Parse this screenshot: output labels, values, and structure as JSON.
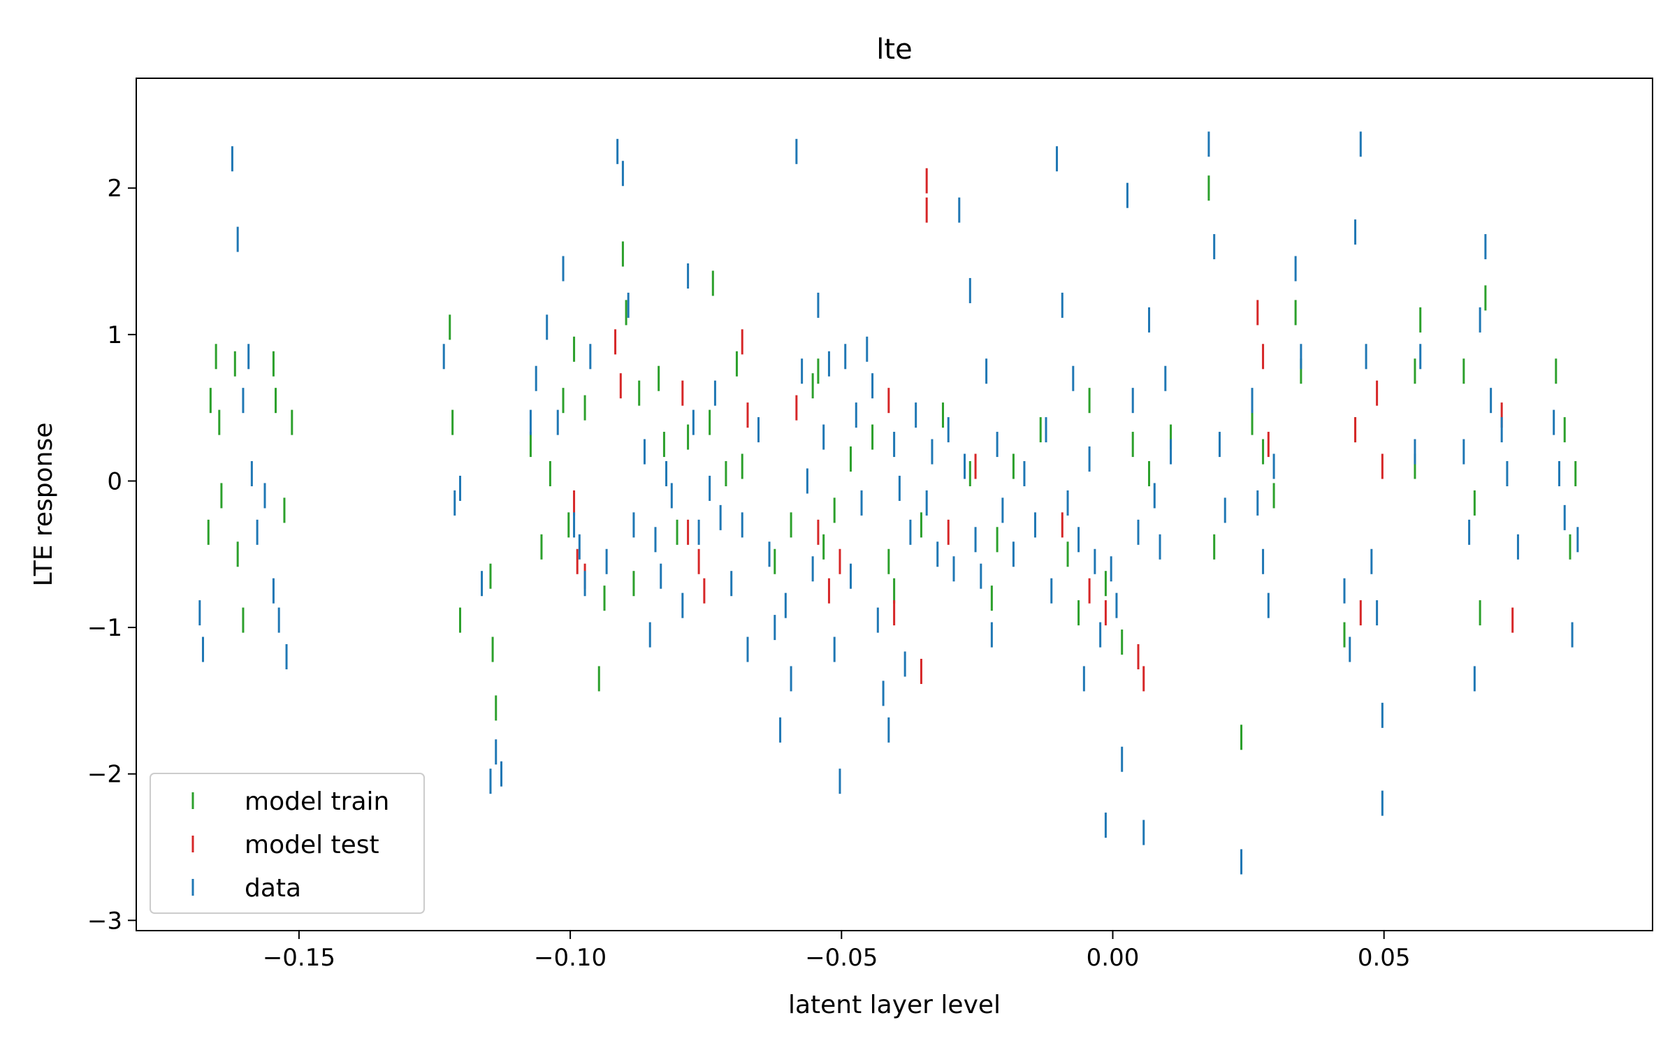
{
  "chart_data": {
    "type": "scatter",
    "title": "lte",
    "xlabel": "latent layer level",
    "ylabel": "LTE response",
    "xlim": [
      -0.18,
      0.0995
    ],
    "ylim": [
      -3.07,
      2.75
    ],
    "xticks": [
      -0.15,
      -0.1,
      -0.05,
      0.0,
      0.05
    ],
    "xtick_labels": [
      "−0.15",
      "−0.10",
      "−0.05",
      "0.00",
      "0.05"
    ],
    "yticks": [
      -3,
      -2,
      -1,
      0,
      1,
      2
    ],
    "ytick_labels": [
      "−3",
      "−2",
      "−1",
      "0",
      "1",
      "2"
    ],
    "grid": false,
    "legend_position": "lower-left",
    "marker": "vertical-line",
    "series": [
      {
        "name": "model train",
        "color": "#2ca02c",
        "points": [
          [
            -0.1667,
            -0.35
          ],
          [
            -0.1663,
            0.55
          ],
          [
            -0.1653,
            0.85
          ],
          [
            -0.1647,
            0.4
          ],
          [
            -0.1643,
            -0.1
          ],
          [
            -0.1618,
            0.8
          ],
          [
            -0.1613,
            -0.5
          ],
          [
            -0.1603,
            -0.95
          ],
          [
            -0.1547,
            0.8
          ],
          [
            -0.1543,
            0.55
          ],
          [
            -0.1527,
            -0.2
          ],
          [
            -0.1513,
            0.4
          ],
          [
            -0.1222,
            1.05
          ],
          [
            -0.1217,
            0.4
          ],
          [
            -0.1203,
            -0.95
          ],
          [
            -0.1147,
            -0.65
          ],
          [
            -0.1143,
            -1.15
          ],
          [
            -0.1137,
            -1.55
          ],
          [
            -0.1073,
            0.25
          ],
          [
            -0.1053,
            -0.45
          ],
          [
            -0.1037,
            0.05
          ],
          [
            -0.1013,
            0.55
          ],
          [
            -0.1003,
            -0.3
          ],
          [
            -0.0993,
            0.9
          ],
          [
            -0.0973,
            0.5
          ],
          [
            -0.0947,
            -1.35
          ],
          [
            -0.0937,
            -0.8
          ],
          [
            -0.0903,
            1.55
          ],
          [
            -0.0897,
            1.15
          ],
          [
            -0.0883,
            -0.7
          ],
          [
            -0.0873,
            0.6
          ],
          [
            -0.0837,
            0.7
          ],
          [
            -0.0827,
            0.25
          ],
          [
            -0.0803,
            -0.35
          ],
          [
            -0.0783,
            0.3
          ],
          [
            -0.0743,
            0.4
          ],
          [
            -0.0737,
            1.35
          ],
          [
            -0.0713,
            0.05
          ],
          [
            -0.0693,
            0.8
          ],
          [
            -0.0683,
            0.1
          ],
          [
            -0.0623,
            -0.55
          ],
          [
            -0.0593,
            -0.3
          ],
          [
            -0.0553,
            0.65
          ],
          [
            -0.0543,
            0.75
          ],
          [
            -0.0533,
            -0.45
          ],
          [
            -0.0513,
            -0.2
          ],
          [
            -0.0483,
            0.15
          ],
          [
            -0.0443,
            0.3
          ],
          [
            -0.0413,
            -0.55
          ],
          [
            -0.0403,
            -0.75
          ],
          [
            -0.0353,
            -0.3
          ],
          [
            -0.0313,
            0.45
          ],
          [
            -0.0263,
            0.05
          ],
          [
            -0.0223,
            -0.8
          ],
          [
            -0.0213,
            -0.4
          ],
          [
            -0.0183,
            0.1
          ],
          [
            -0.0133,
            0.35
          ],
          [
            -0.0083,
            -0.5
          ],
          [
            -0.0063,
            -0.9
          ],
          [
            -0.0043,
            0.55
          ],
          [
            -0.0013,
            -0.7
          ],
          [
            0.0017,
            -1.1
          ],
          [
            0.0037,
            0.25
          ],
          [
            0.0067,
            0.05
          ],
          [
            0.0107,
            0.3
          ],
          [
            0.0177,
            2.0
          ],
          [
            0.0187,
            -0.45
          ],
          [
            0.0237,
            -1.75
          ],
          [
            0.0257,
            0.4
          ],
          [
            0.0277,
            0.2
          ],
          [
            0.0297,
            -0.1
          ],
          [
            0.0337,
            1.15
          ],
          [
            0.0347,
            0.75
          ],
          [
            0.0427,
            -1.05
          ],
          [
            0.0447,
            0.35
          ],
          [
            0.0557,
            0.75
          ],
          [
            0.0567,
            1.1
          ],
          [
            0.0557,
            0.1
          ],
          [
            0.0647,
            0.75
          ],
          [
            0.0667,
            -0.15
          ],
          [
            0.0677,
            -0.9
          ],
          [
            0.0687,
            1.25
          ],
          [
            0.0817,
            0.75
          ],
          [
            0.0833,
            0.35
          ],
          [
            0.0843,
            -0.45
          ],
          [
            0.0853,
            0.05
          ]
        ]
      },
      {
        "name": "model test",
        "color": "#d62728",
        "points": [
          [
            -0.0993,
            -0.15
          ],
          [
            -0.0987,
            -0.55
          ],
          [
            -0.0973,
            -0.65
          ],
          [
            -0.0917,
            0.95
          ],
          [
            -0.0907,
            0.65
          ],
          [
            -0.0793,
            0.6
          ],
          [
            -0.0783,
            -0.35
          ],
          [
            -0.0763,
            -0.55
          ],
          [
            -0.0753,
            -0.75
          ],
          [
            -0.0683,
            0.95
          ],
          [
            -0.0673,
            0.45
          ],
          [
            -0.0583,
            0.5
          ],
          [
            -0.0543,
            -0.35
          ],
          [
            -0.0523,
            -0.75
          ],
          [
            -0.0503,
            -0.55
          ],
          [
            -0.0413,
            0.55
          ],
          [
            -0.0403,
            -0.9
          ],
          [
            -0.0353,
            -1.3
          ],
          [
            -0.0343,
            2.05
          ],
          [
            -0.0343,
            1.85
          ],
          [
            -0.0303,
            -0.35
          ],
          [
            -0.0253,
            0.1
          ],
          [
            -0.0093,
            -0.3
          ],
          [
            -0.0043,
            -0.75
          ],
          [
            -0.0013,
            -0.9
          ],
          [
            0.0047,
            -1.2
          ],
          [
            0.0057,
            -1.35
          ],
          [
            0.0267,
            1.15
          ],
          [
            0.0277,
            0.85
          ],
          [
            0.0287,
            0.25
          ],
          [
            0.0447,
            0.35
          ],
          [
            0.0457,
            -0.9
          ],
          [
            0.0487,
            0.6
          ],
          [
            0.0497,
            0.1
          ],
          [
            0.0717,
            0.45
          ],
          [
            0.0737,
            -0.95
          ]
        ]
      },
      {
        "name": "data",
        "color": "#1f77b4",
        "points": [
          [
            -0.1683,
            -0.9
          ],
          [
            -0.1677,
            -1.15
          ],
          [
            -0.1623,
            2.2
          ],
          [
            -0.1613,
            1.65
          ],
          [
            -0.1603,
            0.55
          ],
          [
            -0.1593,
            0.85
          ],
          [
            -0.1587,
            0.05
          ],
          [
            -0.1577,
            -0.35
          ],
          [
            -0.1563,
            -0.1
          ],
          [
            -0.1547,
            -0.75
          ],
          [
            -0.1537,
            -0.95
          ],
          [
            -0.1523,
            -1.2
          ],
          [
            -0.1233,
            0.85
          ],
          [
            -0.1213,
            -0.15
          ],
          [
            -0.1203,
            -0.05
          ],
          [
            -0.1163,
            -0.7
          ],
          [
            -0.1147,
            -2.05
          ],
          [
            -0.1137,
            -1.85
          ],
          [
            -0.1127,
            -2.0
          ],
          [
            -0.1073,
            0.4
          ],
          [
            -0.1063,
            0.7
          ],
          [
            -0.1043,
            1.05
          ],
          [
            -0.1023,
            0.4
          ],
          [
            -0.1013,
            1.45
          ],
          [
            -0.0993,
            -0.3
          ],
          [
            -0.0983,
            -0.45
          ],
          [
            -0.0973,
            -0.7
          ],
          [
            -0.0963,
            0.85
          ],
          [
            -0.0933,
            -0.55
          ],
          [
            -0.0913,
            2.25
          ],
          [
            -0.0903,
            2.1
          ],
          [
            -0.0893,
            1.2
          ],
          [
            -0.0883,
            -0.3
          ],
          [
            -0.0863,
            0.2
          ],
          [
            -0.0853,
            -1.05
          ],
          [
            -0.0843,
            -0.4
          ],
          [
            -0.0833,
            -0.65
          ],
          [
            -0.0823,
            0.05
          ],
          [
            -0.0813,
            -0.1
          ],
          [
            -0.0793,
            -0.85
          ],
          [
            -0.0783,
            1.4
          ],
          [
            -0.0773,
            0.4
          ],
          [
            -0.0763,
            -0.35
          ],
          [
            -0.0743,
            -0.05
          ],
          [
            -0.0733,
            0.6
          ],
          [
            -0.0723,
            -0.25
          ],
          [
            -0.0703,
            -0.7
          ],
          [
            -0.0683,
            -0.3
          ],
          [
            -0.0673,
            -1.15
          ],
          [
            -0.0653,
            0.35
          ],
          [
            -0.0633,
            -0.5
          ],
          [
            -0.0623,
            -1.0
          ],
          [
            -0.0613,
            -1.7
          ],
          [
            -0.0603,
            -0.85
          ],
          [
            -0.0593,
            -1.35
          ],
          [
            -0.0583,
            2.25
          ],
          [
            -0.0573,
            0.75
          ],
          [
            -0.0563,
            0.0
          ],
          [
            -0.0553,
            -0.6
          ],
          [
            -0.0543,
            1.2
          ],
          [
            -0.0533,
            0.3
          ],
          [
            -0.0523,
            0.8
          ],
          [
            -0.0513,
            -1.15
          ],
          [
            -0.0503,
            -2.05
          ],
          [
            -0.0493,
            0.85
          ],
          [
            -0.0483,
            -0.65
          ],
          [
            -0.0473,
            0.45
          ],
          [
            -0.0463,
            -0.15
          ],
          [
            -0.0453,
            0.9
          ],
          [
            -0.0443,
            0.65
          ],
          [
            -0.0433,
            -0.95
          ],
          [
            -0.0423,
            -1.45
          ],
          [
            -0.0413,
            -1.7
          ],
          [
            -0.0403,
            0.25
          ],
          [
            -0.0393,
            -0.05
          ],
          [
            -0.0383,
            -1.25
          ],
          [
            -0.0373,
            -0.35
          ],
          [
            -0.0363,
            0.45
          ],
          [
            -0.0343,
            -0.15
          ],
          [
            -0.0333,
            0.2
          ],
          [
            -0.0323,
            -0.5
          ],
          [
            -0.0303,
            0.35
          ],
          [
            -0.0293,
            -0.6
          ],
          [
            -0.0283,
            1.85
          ],
          [
            -0.0273,
            0.1
          ],
          [
            -0.0263,
            1.3
          ],
          [
            -0.0253,
            -0.4
          ],
          [
            -0.0243,
            -0.65
          ],
          [
            -0.0233,
            0.75
          ],
          [
            -0.0223,
            -1.05
          ],
          [
            -0.0213,
            0.25
          ],
          [
            -0.0203,
            -0.2
          ],
          [
            -0.0183,
            -0.5
          ],
          [
            -0.0163,
            0.05
          ],
          [
            -0.0143,
            -0.3
          ],
          [
            -0.0123,
            0.35
          ],
          [
            -0.0113,
            -0.75
          ],
          [
            -0.0103,
            2.2
          ],
          [
            -0.0093,
            1.2
          ],
          [
            -0.0083,
            -0.15
          ],
          [
            -0.0073,
            0.7
          ],
          [
            -0.0063,
            -0.4
          ],
          [
            -0.0053,
            -1.35
          ],
          [
            -0.0043,
            0.15
          ],
          [
            -0.0033,
            -0.55
          ],
          [
            -0.0023,
            -1.05
          ],
          [
            -0.0013,
            -2.35
          ],
          [
            -0.0003,
            -0.6
          ],
          [
            0.0007,
            -0.85
          ],
          [
            0.0017,
            -1.9
          ],
          [
            0.0027,
            1.95
          ],
          [
            0.0037,
            0.55
          ],
          [
            0.0047,
            -0.35
          ],
          [
            0.0057,
            -2.4
          ],
          [
            0.0067,
            1.1
          ],
          [
            0.0077,
            -0.1
          ],
          [
            0.0087,
            -0.45
          ],
          [
            0.0097,
            0.7
          ],
          [
            0.0107,
            0.2
          ],
          [
            0.0177,
            2.3
          ],
          [
            0.0187,
            1.6
          ],
          [
            0.0197,
            0.25
          ],
          [
            0.0207,
            -0.2
          ],
          [
            0.0237,
            -2.6
          ],
          [
            0.0257,
            0.55
          ],
          [
            0.0267,
            -0.15
          ],
          [
            0.0277,
            -0.55
          ],
          [
            0.0287,
            -0.85
          ],
          [
            0.0297,
            0.1
          ],
          [
            0.0337,
            1.45
          ],
          [
            0.0347,
            0.85
          ],
          [
            0.0427,
            -0.75
          ],
          [
            0.0437,
            -1.15
          ],
          [
            0.0447,
            1.7
          ],
          [
            0.0457,
            2.3
          ],
          [
            0.0467,
            0.85
          ],
          [
            0.0477,
            -0.55
          ],
          [
            0.0487,
            -0.9
          ],
          [
            0.0497,
            -2.2
          ],
          [
            0.0497,
            -1.6
          ],
          [
            0.0557,
            0.2
          ],
          [
            0.0567,
            0.85
          ],
          [
            0.0647,
            0.2
          ],
          [
            0.0657,
            -0.35
          ],
          [
            0.0667,
            -1.35
          ],
          [
            0.0677,
            1.1
          ],
          [
            0.0687,
            1.6
          ],
          [
            0.0697,
            0.55
          ],
          [
            0.0717,
            0.35
          ],
          [
            0.0727,
            0.05
          ],
          [
            0.0747,
            -0.45
          ],
          [
            0.0813,
            0.4
          ],
          [
            0.0823,
            0.05
          ],
          [
            0.0833,
            -0.25
          ],
          [
            0.0847,
            -1.05
          ],
          [
            0.0857,
            -0.4
          ]
        ]
      }
    ]
  }
}
